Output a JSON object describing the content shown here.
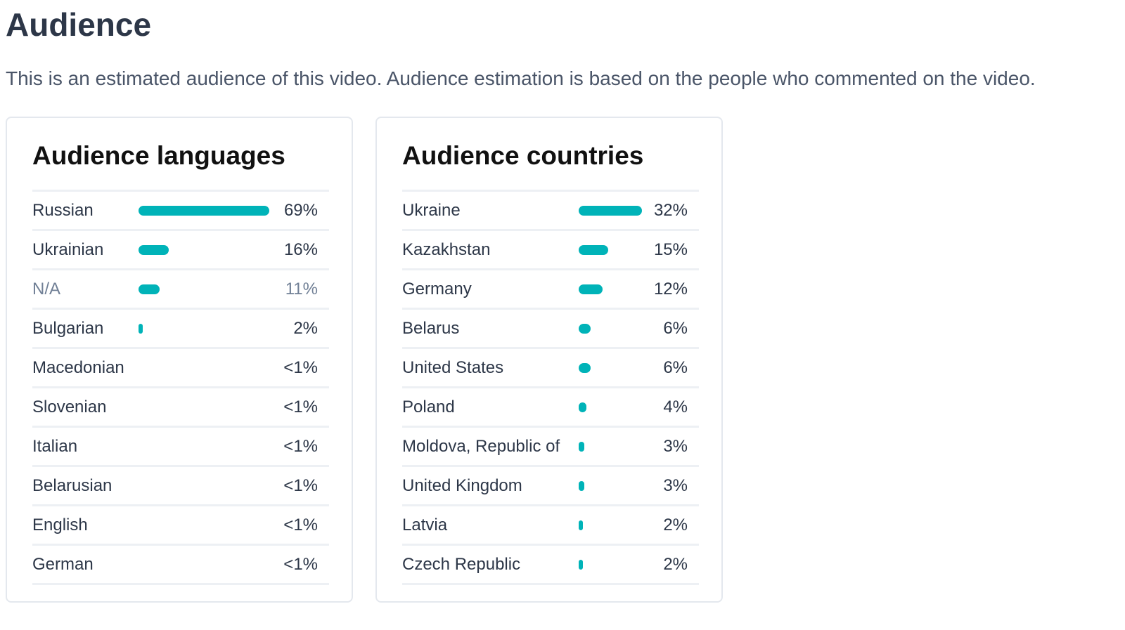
{
  "header": {
    "title": "Audience",
    "subtitle": "This is an estimated audience of this video. Audience estimation is based on the people who commented on the video."
  },
  "colors": {
    "accent": "#00b3b8",
    "text": "#2d3748",
    "muted": "#718096",
    "divider": "#edf0f4"
  },
  "languages": {
    "title": "Audience languages",
    "items": [
      {
        "label": "Russian",
        "value": "69%",
        "share": 0.69,
        "muted": false
      },
      {
        "label": "Ukrainian",
        "value": "16%",
        "share": 0.16,
        "muted": false
      },
      {
        "label": "N/A",
        "value": "11%",
        "share": 0.11,
        "muted": true
      },
      {
        "label": "Bulgarian",
        "value": "2%",
        "share": 0.02,
        "muted": false
      },
      {
        "label": "Macedonian",
        "value": "<1%",
        "share": 0,
        "muted": false
      },
      {
        "label": "Slovenian",
        "value": "<1%",
        "share": 0,
        "muted": false
      },
      {
        "label": "Italian",
        "value": "<1%",
        "share": 0,
        "muted": false
      },
      {
        "label": "Belarusian",
        "value": "<1%",
        "share": 0,
        "muted": false
      },
      {
        "label": "English",
        "value": "<1%",
        "share": 0,
        "muted": false
      },
      {
        "label": "German",
        "value": "<1%",
        "share": 0,
        "muted": false
      }
    ]
  },
  "countries": {
    "title": "Audience countries",
    "items": [
      {
        "label": "Ukraine",
        "value": "32%",
        "share": 0.32,
        "muted": false
      },
      {
        "label": "Kazakhstan",
        "value": "15%",
        "share": 0.15,
        "muted": false
      },
      {
        "label": "Germany",
        "value": "12%",
        "share": 0.12,
        "muted": false
      },
      {
        "label": "Belarus",
        "value": "6%",
        "share": 0.06,
        "muted": false
      },
      {
        "label": "United States",
        "value": "6%",
        "share": 0.06,
        "muted": false
      },
      {
        "label": "Poland",
        "value": "4%",
        "share": 0.04,
        "muted": false
      },
      {
        "label": "Moldova, Republic of",
        "value": "3%",
        "share": 0.03,
        "muted": false
      },
      {
        "label": "United Kingdom",
        "value": "3%",
        "share": 0.03,
        "muted": false
      },
      {
        "label": "Latvia",
        "value": "2%",
        "share": 0.02,
        "muted": false
      },
      {
        "label": "Czech Republic",
        "value": "2%",
        "share": 0.02,
        "muted": false
      }
    ]
  }
}
